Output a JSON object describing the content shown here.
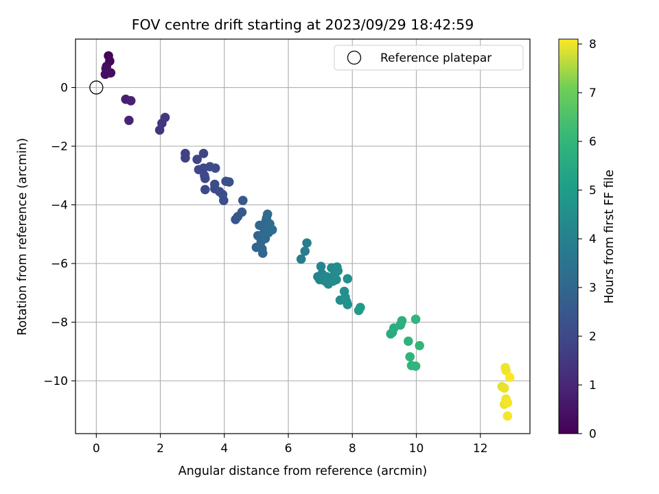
{
  "chart_data": {
    "type": "scatter",
    "title": "FOV centre drift starting at 2023/09/29 18:42:59",
    "xlabel": "Angular distance from reference (arcmin)",
    "ylabel": "Rotation from reference (arcmin)",
    "xlim": [
      -0.65,
      13.55
    ],
    "ylim": [
      -11.8,
      1.65
    ],
    "xticks": [
      0,
      2,
      4,
      6,
      8,
      10,
      12
    ],
    "yticks": [
      0,
      -2,
      -4,
      -6,
      -8,
      -10
    ],
    "xtick_labels": [
      "0",
      "2",
      "4",
      "6",
      "8",
      "10",
      "12"
    ],
    "ytick_labels": [
      "0",
      "−2",
      "−4",
      "−6",
      "−8",
      "−10"
    ],
    "grid": true,
    "legend": {
      "position": "top-right",
      "entries": [
        "Reference platepar"
      ]
    },
    "reference_point": {
      "x": 0,
      "y": 0,
      "marker": "hollow-circle",
      "label": "Reference platepar"
    },
    "colorbar": {
      "label": "Hours from first FF file",
      "min": 0,
      "max": 8.1,
      "ticks": [
        0,
        1,
        2,
        3,
        4,
        5,
        6,
        7,
        8
      ],
      "colormap": "viridis"
    },
    "points": [
      {
        "x": 0.38,
        "y": 1.08,
        "c": 0.1
      },
      {
        "x": 0.42,
        "y": 0.9,
        "c": 0.15
      },
      {
        "x": 0.32,
        "y": 0.72,
        "c": 0.2
      },
      {
        "x": 0.45,
        "y": 0.5,
        "c": 0.25
      },
      {
        "x": 0.35,
        "y": 0.5,
        "c": 0.3
      },
      {
        "x": 0.28,
        "y": 0.45,
        "c": 0.35
      },
      {
        "x": 0.3,
        "y": 0.65,
        "c": 0.4
      },
      {
        "x": 0.92,
        "y": -0.4,
        "c": 0.8
      },
      {
        "x": 1.08,
        "y": -0.45,
        "c": 0.85
      },
      {
        "x": 1.02,
        "y": -1.12,
        "c": 0.9
      },
      {
        "x": 1.98,
        "y": -1.45,
        "c": 1.4
      },
      {
        "x": 2.05,
        "y": -1.22,
        "c": 1.45
      },
      {
        "x": 2.15,
        "y": -1.02,
        "c": 1.5
      },
      {
        "x": 2.78,
        "y": -2.25,
        "c": 1.8
      },
      {
        "x": 2.78,
        "y": -2.4,
        "c": 1.8
      },
      {
        "x": 3.15,
        "y": -2.45,
        "c": 1.9
      },
      {
        "x": 3.35,
        "y": -2.25,
        "c": 1.9
      },
      {
        "x": 3.2,
        "y": -2.8,
        "c": 1.95
      },
      {
        "x": 3.35,
        "y": -2.75,
        "c": 1.95
      },
      {
        "x": 3.38,
        "y": -3.0,
        "c": 2.0
      },
      {
        "x": 3.4,
        "y": -3.1,
        "c": 2.0
      },
      {
        "x": 3.4,
        "y": -3.48,
        "c": 2.0
      },
      {
        "x": 3.55,
        "y": -2.7,
        "c": 2.05
      },
      {
        "x": 3.72,
        "y": -2.75,
        "c": 2.1
      },
      {
        "x": 3.7,
        "y": -3.3,
        "c": 2.1
      },
      {
        "x": 3.7,
        "y": -3.45,
        "c": 2.1
      },
      {
        "x": 3.85,
        "y": -3.55,
        "c": 2.15
      },
      {
        "x": 3.95,
        "y": -3.65,
        "c": 2.2
      },
      {
        "x": 3.98,
        "y": -3.85,
        "c": 2.2
      },
      {
        "x": 4.05,
        "y": -3.2,
        "c": 2.2
      },
      {
        "x": 4.15,
        "y": -3.22,
        "c": 2.25
      },
      {
        "x": 4.35,
        "y": -4.5,
        "c": 2.4
      },
      {
        "x": 4.42,
        "y": -4.4,
        "c": 2.45
      },
      {
        "x": 4.55,
        "y": -4.25,
        "c": 2.5
      },
      {
        "x": 4.58,
        "y": -3.85,
        "c": 2.5
      },
      {
        "x": 5.0,
        "y": -5.45,
        "c": 2.9
      },
      {
        "x": 5.05,
        "y": -5.05,
        "c": 2.95
      },
      {
        "x": 5.1,
        "y": -4.7,
        "c": 3.0
      },
      {
        "x": 5.15,
        "y": -5.25,
        "c": 3.0
      },
      {
        "x": 5.18,
        "y": -5.5,
        "c": 3.05
      },
      {
        "x": 5.2,
        "y": -5.65,
        "c": 3.05
      },
      {
        "x": 5.22,
        "y": -5.0,
        "c": 3.1
      },
      {
        "x": 5.25,
        "y": -4.85,
        "c": 3.1
      },
      {
        "x": 5.28,
        "y": -5.15,
        "c": 3.1
      },
      {
        "x": 5.3,
        "y": -4.55,
        "c": 3.15
      },
      {
        "x": 5.32,
        "y": -4.45,
        "c": 3.15
      },
      {
        "x": 5.35,
        "y": -4.32,
        "c": 3.2
      },
      {
        "x": 5.38,
        "y": -4.95,
        "c": 3.2
      },
      {
        "x": 5.42,
        "y": -4.65,
        "c": 3.2
      },
      {
        "x": 5.5,
        "y": -4.85,
        "c": 3.25
      },
      {
        "x": 6.4,
        "y": -5.85,
        "c": 3.8
      },
      {
        "x": 6.52,
        "y": -5.58,
        "c": 3.85
      },
      {
        "x": 6.58,
        "y": -5.3,
        "c": 3.9
      },
      {
        "x": 6.92,
        "y": -6.45,
        "c": 4.1
      },
      {
        "x": 6.98,
        "y": -6.55,
        "c": 4.1
      },
      {
        "x": 7.02,
        "y": -6.1,
        "c": 4.15
      },
      {
        "x": 7.05,
        "y": -6.35,
        "c": 4.15
      },
      {
        "x": 7.1,
        "y": -6.5,
        "c": 4.2
      },
      {
        "x": 7.15,
        "y": -6.6,
        "c": 4.2
      },
      {
        "x": 7.2,
        "y": -6.45,
        "c": 4.25
      },
      {
        "x": 7.25,
        "y": -6.7,
        "c": 4.25
      },
      {
        "x": 7.3,
        "y": -6.55,
        "c": 4.3
      },
      {
        "x": 7.35,
        "y": -6.15,
        "c": 4.3
      },
      {
        "x": 7.4,
        "y": -6.6,
        "c": 4.35
      },
      {
        "x": 7.45,
        "y": -6.35,
        "c": 4.35
      },
      {
        "x": 7.5,
        "y": -6.55,
        "c": 4.4
      },
      {
        "x": 7.52,
        "y": -6.12,
        "c": 4.4
      },
      {
        "x": 7.55,
        "y": -6.25,
        "c": 4.45
      },
      {
        "x": 7.62,
        "y": -7.25,
        "c": 4.5
      },
      {
        "x": 7.75,
        "y": -6.95,
        "c": 4.55
      },
      {
        "x": 7.78,
        "y": -7.15,
        "c": 4.55
      },
      {
        "x": 7.82,
        "y": -7.3,
        "c": 4.6
      },
      {
        "x": 7.85,
        "y": -7.4,
        "c": 4.6
      },
      {
        "x": 7.85,
        "y": -6.52,
        "c": 4.6
      },
      {
        "x": 8.2,
        "y": -7.6,
        "c": 4.9
      },
      {
        "x": 8.25,
        "y": -7.5,
        "c": 4.95
      },
      {
        "x": 9.2,
        "y": -8.4,
        "c": 5.6
      },
      {
        "x": 9.25,
        "y": -8.35,
        "c": 5.6
      },
      {
        "x": 9.3,
        "y": -8.2,
        "c": 5.65
      },
      {
        "x": 9.5,
        "y": -8.1,
        "c": 5.7
      },
      {
        "x": 9.52,
        "y": -8.05,
        "c": 5.7
      },
      {
        "x": 9.55,
        "y": -7.95,
        "c": 5.75
      },
      {
        "x": 9.75,
        "y": -8.65,
        "c": 5.85
      },
      {
        "x": 9.8,
        "y": -9.18,
        "c": 5.9
      },
      {
        "x": 9.85,
        "y": -9.48,
        "c": 5.9
      },
      {
        "x": 9.98,
        "y": -9.5,
        "c": 5.95
      },
      {
        "x": 9.98,
        "y": -7.9,
        "c": 5.95
      },
      {
        "x": 10.1,
        "y": -8.8,
        "c": 6.0
      },
      {
        "x": 12.68,
        "y": -10.2,
        "c": 7.9
      },
      {
        "x": 12.75,
        "y": -10.25,
        "c": 7.95
      },
      {
        "x": 12.75,
        "y": -10.8,
        "c": 7.95
      },
      {
        "x": 12.78,
        "y": -9.55,
        "c": 8.0
      },
      {
        "x": 12.8,
        "y": -9.65,
        "c": 8.0
      },
      {
        "x": 12.8,
        "y": -10.62,
        "c": 8.0
      },
      {
        "x": 12.85,
        "y": -10.75,
        "c": 8.05
      },
      {
        "x": 12.85,
        "y": -11.2,
        "c": 8.05
      },
      {
        "x": 12.92,
        "y": -9.88,
        "c": 8.1
      }
    ]
  }
}
